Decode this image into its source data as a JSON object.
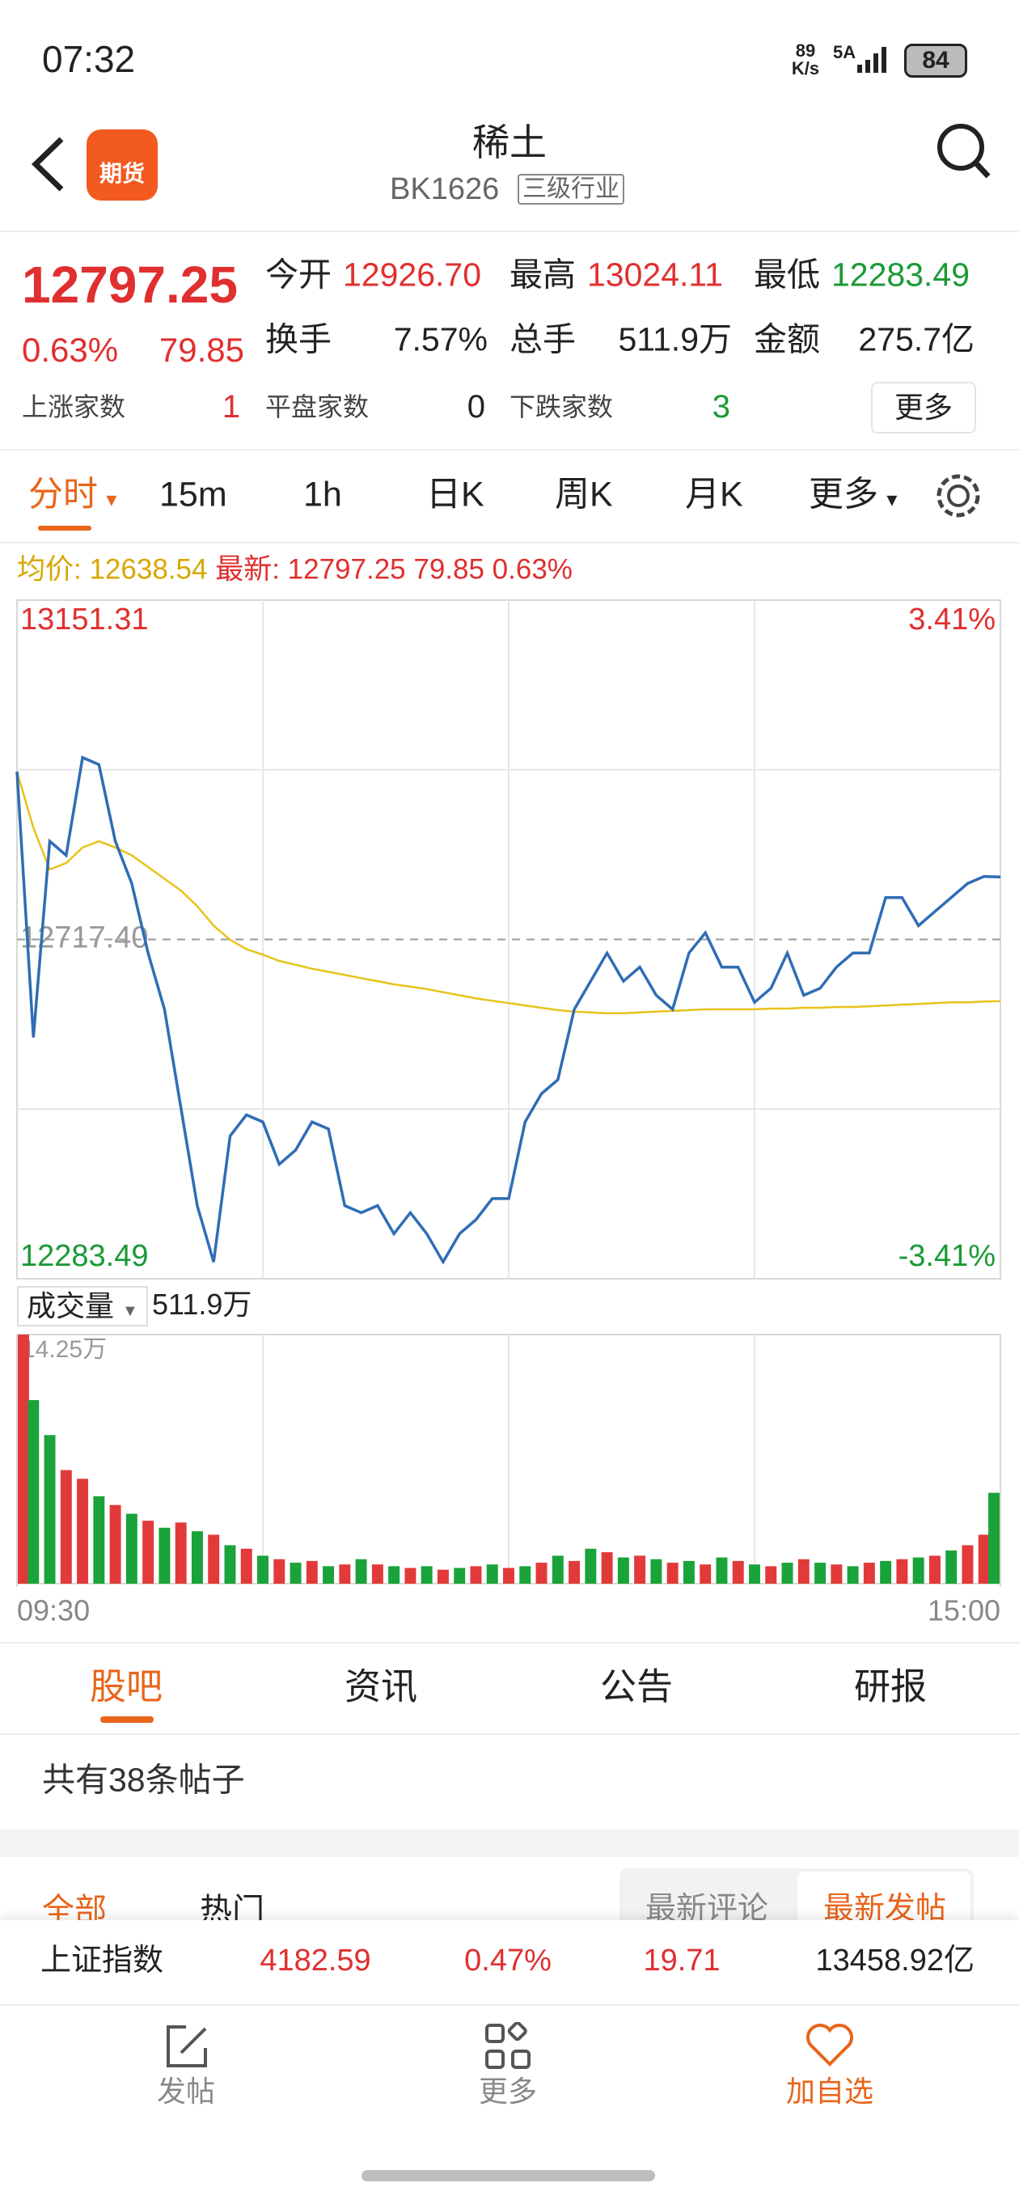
{
  "status": {
    "time": "07:32",
    "net_speed": "89",
    "net_unit": "K/s",
    "signal": "5A",
    "battery": "84"
  },
  "header": {
    "logo": "期货",
    "title": "稀土",
    "code": "BK1626",
    "tag": "三级行业"
  },
  "quote": {
    "price": "12797.25",
    "change_pct": "0.63%",
    "change": "79.85",
    "fields": [
      {
        "label": "今开",
        "value": "12926.70"
      },
      {
        "label": "最高",
        "value": "13024.11"
      },
      {
        "label": "最低",
        "value": "12283.49"
      },
      {
        "label": "换手",
        "value": "7.57%"
      },
      {
        "label": "总手",
        "value": "511.9万"
      },
      {
        "label": "金额",
        "value": "275.7亿"
      }
    ],
    "counts": [
      {
        "label": "上涨家数",
        "value": "1"
      },
      {
        "label": "平盘家数",
        "value": "0"
      },
      {
        "label": "下跌家数",
        "value": "3"
      }
    ],
    "more": "更多"
  },
  "period_tabs": [
    "分时",
    "15m",
    "1h",
    "日K",
    "周K",
    "月K",
    "更多"
  ],
  "legend": {
    "avg_label": "均价:",
    "avg_value": "12638.54",
    "last_label": "最新:",
    "last_value": "12797.25 79.85 0.63%"
  },
  "volume_header": {
    "label": "成交量",
    "value": "511.9万"
  },
  "chart_data": [
    {
      "type": "line",
      "x": [
        0,
        4,
        8,
        12,
        16,
        20,
        24,
        28,
        32,
        36,
        40,
        44,
        48,
        52,
        56,
        60,
        64,
        68,
        72,
        76,
        80,
        84,
        88,
        92,
        96,
        100,
        104,
        108,
        112,
        116,
        120,
        124,
        128,
        132,
        136,
        140,
        144,
        148,
        152,
        156,
        160,
        164,
        168,
        172,
        176,
        180,
        184,
        188,
        192,
        196,
        200,
        204,
        208,
        212,
        216,
        220,
        224,
        228,
        232,
        236,
        240
      ],
      "xlim": [
        0,
        240
      ],
      "ylim": [
        12283.49,
        13151.31
      ],
      "yticks": [
        {
          "value": 13151.31,
          "label": "13151.31"
        },
        {
          "value": 12717.4,
          "label": "12717.40"
        },
        {
          "value": 12283.49,
          "label": "12283.49"
        }
      ],
      "y2lim": [
        -3.41,
        3.41
      ],
      "y2ticks": [
        {
          "value": 3.41,
          "label": "3.41%"
        },
        {
          "value": -3.41,
          "label": "-3.41%"
        }
      ],
      "series": [
        {
          "color": "#2f6db5",
          "values": [
            12932,
            12592,
            12843,
            12825,
            12950,
            12941,
            12843,
            12789,
            12700,
            12628,
            12502,
            12377,
            12305,
            12466,
            12493,
            12484,
            12430,
            12448,
            12484,
            12475,
            12377,
            12368,
            12377,
            12341,
            12368,
            12341,
            12305,
            12341,
            12359,
            12386,
            12386,
            12484,
            12520,
            12538,
            12628,
            12664,
            12700,
            12664,
            12682,
            12646,
            12628,
            12700,
            12726,
            12682,
            12682,
            12637,
            12655,
            12700,
            12646,
            12655,
            12682,
            12700,
            12700,
            12771,
            12771,
            12735,
            12753,
            12771,
            12789,
            12798,
            12797.25
          ]
        },
        {
          "color": "#e8c21a",
          "values": [
            12932,
            12860,
            12807,
            12815,
            12835,
            12843,
            12835,
            12825,
            12810,
            12795,
            12780,
            12760,
            12735,
            12717,
            12705,
            12698,
            12690,
            12685,
            12680,
            12676,
            12672,
            12668,
            12664,
            12660,
            12657,
            12654,
            12650,
            12646,
            12642,
            12639,
            12636,
            12633,
            12630,
            12627,
            12625,
            12624,
            12623,
            12623,
            12624,
            12625,
            12626,
            12627,
            12628,
            12628,
            12628,
            12628,
            12629,
            12629,
            12630,
            12630,
            12631,
            12631,
            12632,
            12633,
            12634,
            12635,
            12636,
            12637,
            12637,
            12638,
            12638.54
          ]
        }
      ]
    },
    {
      "type": "bar",
      "x": [
        0,
        4,
        8,
        12,
        16,
        20,
        24,
        28,
        32,
        36,
        40,
        44,
        48,
        52,
        56,
        60,
        64,
        68,
        72,
        76,
        80,
        84,
        88,
        92,
        96,
        100,
        104,
        108,
        112,
        116,
        120,
        124,
        128,
        132,
        136,
        140,
        144,
        148,
        152,
        156,
        160,
        164,
        168,
        172,
        176,
        180,
        184,
        188,
        192,
        196,
        200,
        204,
        208,
        212,
        216,
        220,
        224,
        228,
        232,
        236,
        240
      ],
      "xlim": [
        0,
        240
      ],
      "xticks": [
        {
          "value": 0,
          "label": "09:30"
        },
        {
          "value": 240,
          "label": "15:00"
        }
      ],
      "ylim": [
        0,
        14.25
      ],
      "yticks": [
        {
          "value": 14.25,
          "label": "14.25万"
        }
      ],
      "values": [
        14.25,
        10.5,
        8.5,
        6.5,
        6,
        5,
        4.5,
        4,
        3.6,
        3.2,
        3.5,
        3,
        2.8,
        2.2,
        2,
        1.6,
        1.4,
        1.2,
        1.3,
        1,
        1.1,
        1.4,
        1.1,
        1,
        0.9,
        1,
        0.8,
        0.9,
        1,
        1.1,
        0.9,
        1,
        1.2,
        1.6,
        1.3,
        2,
        1.8,
        1.5,
        1.6,
        1.4,
        1.2,
        1.3,
        1.1,
        1.5,
        1.3,
        1.1,
        1,
        1.2,
        1.4,
        1.2,
        1.1,
        1,
        1.2,
        1.3,
        1.4,
        1.5,
        1.6,
        1.9,
        2.2,
        2.8,
        5.2
      ],
      "colors": [
        "#e23a3a",
        "#1aa33a",
        "#1aa33a",
        "#e23a3a",
        "#e23a3a",
        "#1aa33a",
        "#e23a3a",
        "#1aa33a",
        "#e23a3a",
        "#1aa33a",
        "#e23a3a",
        "#1aa33a",
        "#e23a3a",
        "#1aa33a",
        "#e23a3a",
        "#1aa33a",
        "#e23a3a",
        "#1aa33a",
        "#e23a3a",
        "#1aa33a",
        "#e23a3a",
        "#1aa33a",
        "#e23a3a",
        "#1aa33a",
        "#e23a3a",
        "#1aa33a",
        "#e23a3a",
        "#1aa33a",
        "#e23a3a",
        "#1aa33a",
        "#e23a3a",
        "#1aa33a",
        "#e23a3a",
        "#1aa33a",
        "#e23a3a",
        "#1aa33a",
        "#e23a3a",
        "#1aa33a",
        "#e23a3a",
        "#1aa33a",
        "#e23a3a",
        "#1aa33a",
        "#e23a3a",
        "#1aa33a",
        "#e23a3a",
        "#1aa33a",
        "#e23a3a",
        "#1aa33a",
        "#e23a3a",
        "#1aa33a",
        "#e23a3a",
        "#1aa33a",
        "#e23a3a",
        "#1aa33a",
        "#e23a3a",
        "#1aa33a",
        "#e23a3a",
        "#1aa33a",
        "#e23a3a",
        "#e23a3a",
        "#1aa33a"
      ]
    }
  ],
  "info_tabs": [
    "股吧",
    "资讯",
    "公告",
    "研报"
  ],
  "post_count": "共有38条帖子",
  "filter_tabs": [
    "全部",
    "热门"
  ],
  "sort_tabs": [
    "最新评论",
    "最新发帖"
  ],
  "ticker": {
    "name": "上证指数",
    "price": "4182.59",
    "change_pct": "0.47%",
    "change": "19.71",
    "amount": "13458.92亿"
  },
  "nav": [
    "发帖",
    "更多",
    "加自选"
  ]
}
